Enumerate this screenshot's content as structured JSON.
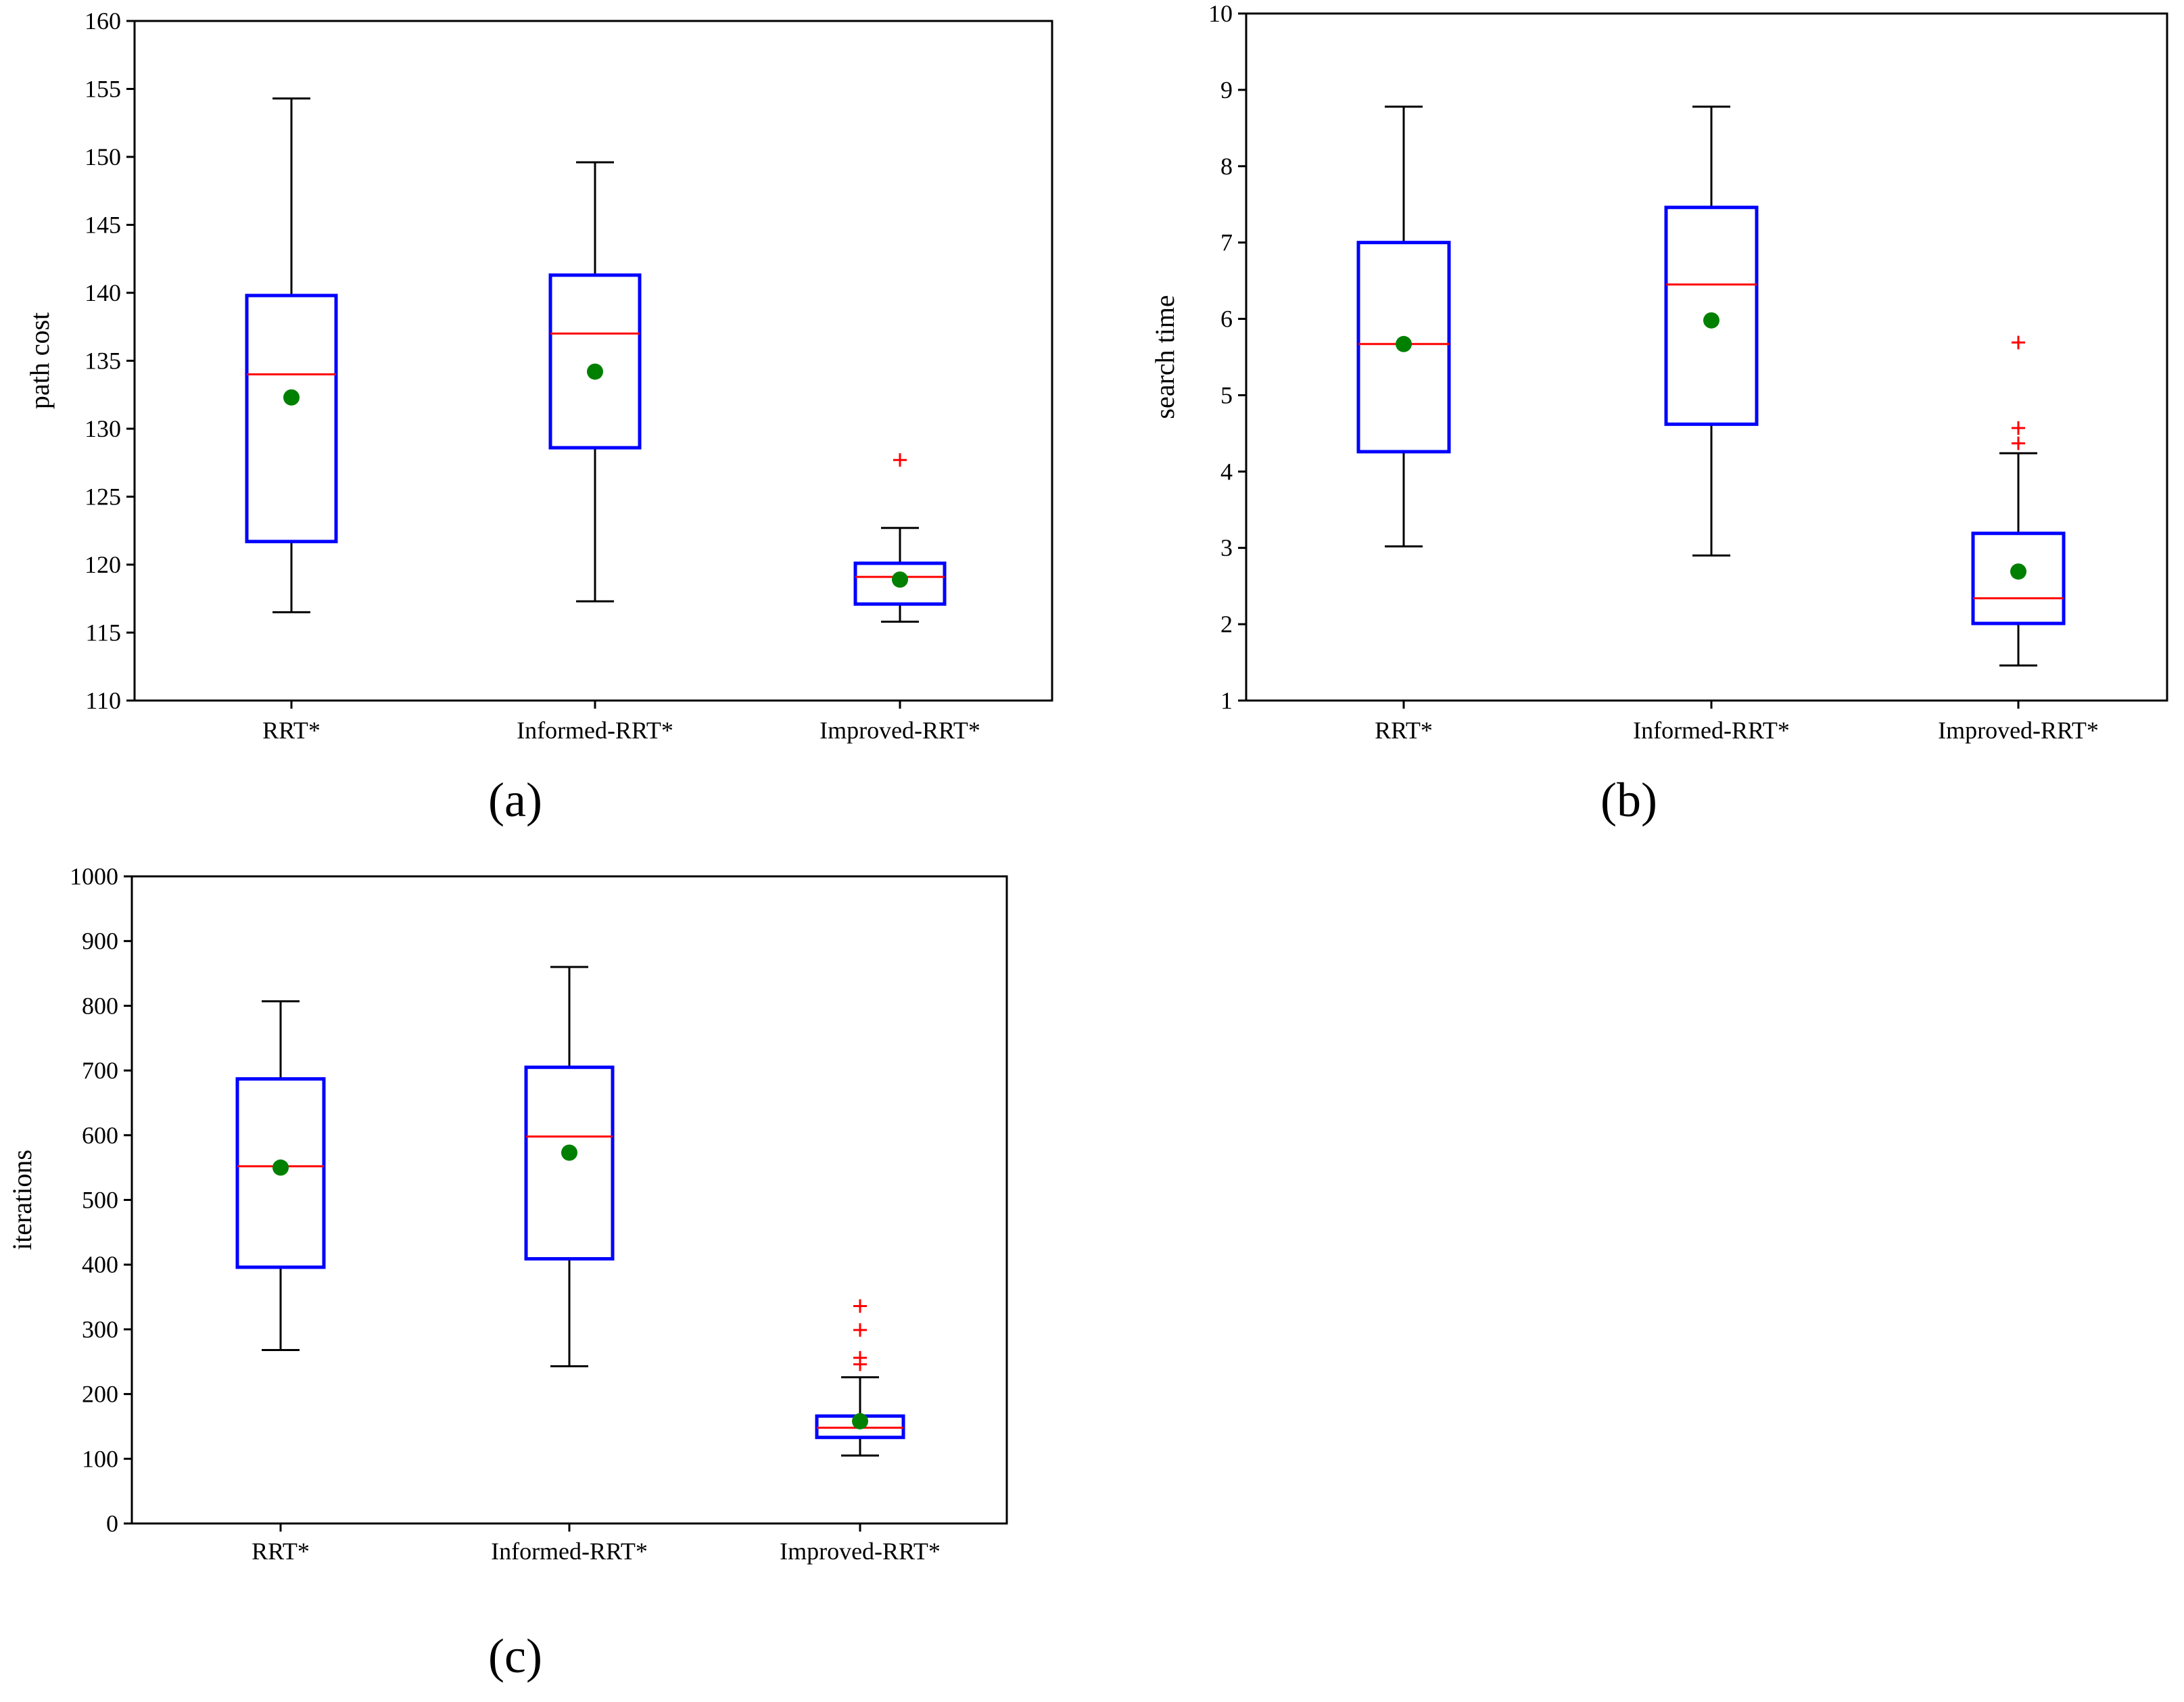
{
  "colors": {
    "box": "#0000ff",
    "median": "#ff0000",
    "mean": "#008000",
    "whisker": "#000000",
    "outlier": "#ff0000"
  },
  "chart_data": [
    {
      "type": "box",
      "panel_label": "(a)",
      "ylabel": "path cost",
      "categories": [
        "RRT*",
        "Informed-RRT*",
        "Improved-RRT*"
      ],
      "ylim": [
        110,
        160
      ],
      "yticks": [
        110,
        115,
        120,
        125,
        130,
        135,
        140,
        145,
        150,
        155,
        160
      ],
      "boxes": [
        {
          "name": "RRT*",
          "whisker_low": 116.5,
          "q1": 121.7,
          "median": 134.0,
          "q3": 139.8,
          "whisker_high": 154.3,
          "mean": 132.3,
          "outliers": []
        },
        {
          "name": "Informed-RRT*",
          "whisker_low": 117.3,
          "q1": 128.6,
          "median": 137.0,
          "q3": 141.3,
          "whisker_high": 149.6,
          "mean": 134.2,
          "outliers": []
        },
        {
          "name": "Improved-RRT*",
          "whisker_low": 115.8,
          "q1": 117.1,
          "median": 119.1,
          "q3": 120.1,
          "whisker_high": 122.7,
          "mean": 118.9,
          "outliers": [
            127.7
          ]
        }
      ]
    },
    {
      "type": "box",
      "panel_label": "(b)",
      "ylabel": "search time",
      "categories": [
        "RRT*",
        "Informed-RRT*",
        "Improved-RRT*"
      ],
      "ylim": [
        1,
        10
      ],
      "yticks": [
        1,
        2,
        3,
        4,
        5,
        6,
        7,
        8,
        9,
        10
      ],
      "boxes": [
        {
          "name": "RRT*",
          "whisker_low": 3.02,
          "q1": 4.26,
          "median": 5.67,
          "q3": 7.0,
          "whisker_high": 8.78,
          "mean": 5.67,
          "outliers": []
        },
        {
          "name": "Informed-RRT*",
          "whisker_low": 2.9,
          "q1": 4.62,
          "median": 6.45,
          "q3": 7.46,
          "whisker_high": 8.78,
          "mean": 5.98,
          "outliers": []
        },
        {
          "name": "Improved-RRT*",
          "whisker_low": 1.46,
          "q1": 2.01,
          "median": 2.34,
          "q3": 3.19,
          "whisker_high": 4.24,
          "mean": 2.69,
          "outliers": [
            4.37,
            4.57,
            5.69
          ]
        }
      ]
    },
    {
      "type": "box",
      "panel_label": "(c)",
      "ylabel": "iterations",
      "categories": [
        "RRT*",
        "Informed-RRT*",
        "Improved-RRT*"
      ],
      "ylim": [
        0,
        1000
      ],
      "yticks": [
        0,
        100,
        200,
        300,
        400,
        500,
        600,
        700,
        800,
        900,
        1000
      ],
      "boxes": [
        {
          "name": "RRT*",
          "whisker_low": 268,
          "q1": 396,
          "median": 552,
          "q3": 687,
          "whisker_high": 807,
          "mean": 550,
          "outliers": []
        },
        {
          "name": "Informed-RRT*",
          "whisker_low": 243,
          "q1": 409,
          "median": 598,
          "q3": 705,
          "whisker_high": 860,
          "mean": 573,
          "outliers": []
        },
        {
          "name": "Improved-RRT*",
          "whisker_low": 105,
          "q1": 133,
          "median": 148,
          "q3": 166,
          "whisker_high": 226,
          "mean": 158,
          "outliers": [
            246,
            256,
            299,
            336
          ]
        }
      ]
    }
  ]
}
